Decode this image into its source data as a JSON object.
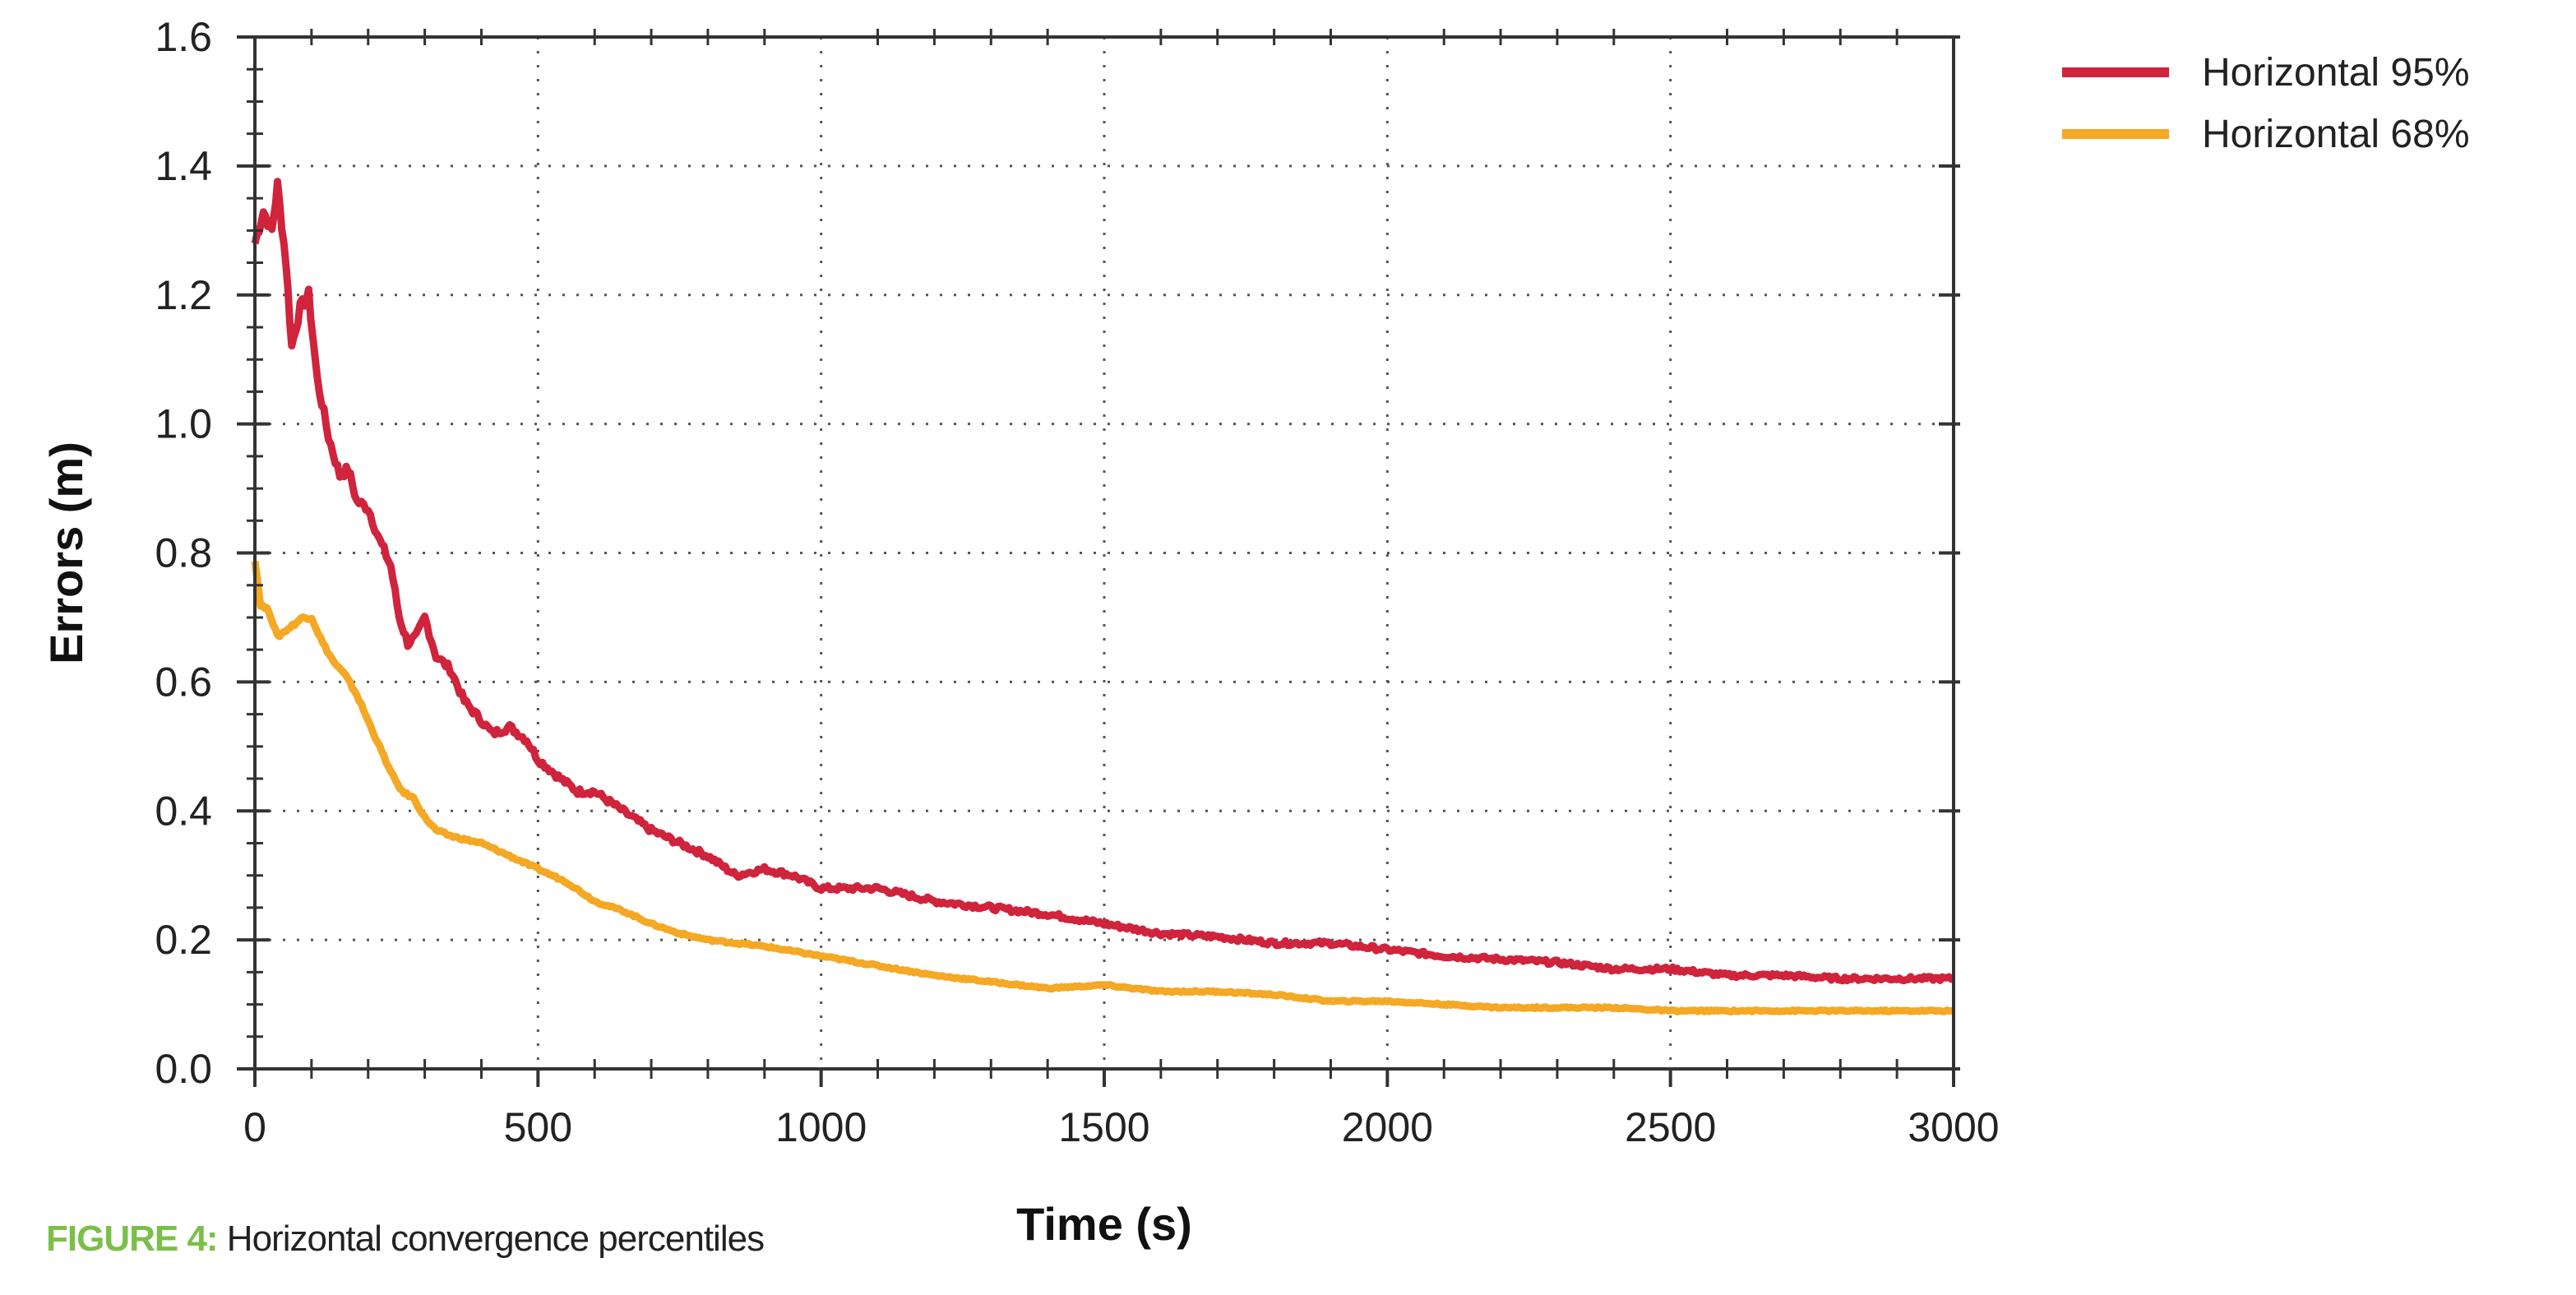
{
  "caption": {
    "figure_label": "FIGURE 4:",
    "text": " Horizontal convergence percentiles"
  },
  "chart_data": {
    "type": "line",
    "xlabel": "Time (s)",
    "ylabel": "Errors (m)",
    "xlim": [
      0,
      3000
    ],
    "ylim": [
      0.0,
      1.6
    ],
    "x_ticks": [
      0,
      500,
      1000,
      1500,
      2000,
      2500,
      3000
    ],
    "x_tick_labels": [
      "0",
      "500",
      "1000",
      "1500",
      "2000",
      "2500",
      "3000"
    ],
    "y_ticks": [
      0.0,
      0.2,
      0.4,
      0.6,
      0.8,
      1.0,
      1.2,
      1.4,
      1.6
    ],
    "y_tick_labels": [
      "0.0",
      "0.2",
      "0.4",
      "0.6",
      "0.8",
      "1.0",
      "1.2",
      "1.4",
      "1.6"
    ],
    "grid": true,
    "grid_style": "dotted",
    "legend_position": "outside-top-right",
    "series": [
      {
        "name": "Horizontal 95%",
        "color": "#d0233c",
        "points": [
          [
            0,
            1.28
          ],
          [
            15,
            1.33
          ],
          [
            30,
            1.3
          ],
          [
            40,
            1.37
          ],
          [
            55,
            1.25
          ],
          [
            65,
            1.12
          ],
          [
            80,
            1.18
          ],
          [
            95,
            1.2
          ],
          [
            110,
            1.07
          ],
          [
            130,
            0.98
          ],
          [
            150,
            0.92
          ],
          [
            165,
            0.93
          ],
          [
            180,
            0.88
          ],
          [
            200,
            0.87
          ],
          [
            220,
            0.82
          ],
          [
            240,
            0.78
          ],
          [
            255,
            0.7
          ],
          [
            270,
            0.66
          ],
          [
            285,
            0.67
          ],
          [
            300,
            0.7
          ],
          [
            320,
            0.64
          ],
          [
            345,
            0.62
          ],
          [
            370,
            0.57
          ],
          [
            400,
            0.54
          ],
          [
            420,
            0.52
          ],
          [
            450,
            0.53
          ],
          [
            480,
            0.51
          ],
          [
            500,
            0.48
          ],
          [
            540,
            0.45
          ],
          [
            570,
            0.43
          ],
          [
            600,
            0.43
          ],
          [
            650,
            0.4
          ],
          [
            700,
            0.37
          ],
          [
            750,
            0.35
          ],
          [
            800,
            0.33
          ],
          [
            850,
            0.3
          ],
          [
            900,
            0.31
          ],
          [
            950,
            0.3
          ],
          [
            1000,
            0.28
          ],
          [
            1100,
            0.28
          ],
          [
            1200,
            0.26
          ],
          [
            1300,
            0.25
          ],
          [
            1400,
            0.24
          ],
          [
            1500,
            0.225
          ],
          [
            1600,
            0.21
          ],
          [
            1700,
            0.205
          ],
          [
            1800,
            0.195
          ],
          [
            1900,
            0.195
          ],
          [
            2000,
            0.185
          ],
          [
            2100,
            0.175
          ],
          [
            2200,
            0.17
          ],
          [
            2300,
            0.165
          ],
          [
            2400,
            0.155
          ],
          [
            2500,
            0.155
          ],
          [
            2600,
            0.145
          ],
          [
            2700,
            0.145
          ],
          [
            2800,
            0.14
          ],
          [
            2900,
            0.14
          ],
          [
            3000,
            0.14
          ]
        ]
      },
      {
        "name": "Horizontal 68%",
        "color": "#f4a824",
        "points": [
          [
            0,
            0.79
          ],
          [
            10,
            0.72
          ],
          [
            25,
            0.71
          ],
          [
            40,
            0.67
          ],
          [
            55,
            0.68
          ],
          [
            70,
            0.69
          ],
          [
            85,
            0.7
          ],
          [
            100,
            0.7
          ],
          [
            120,
            0.66
          ],
          [
            140,
            0.63
          ],
          [
            160,
            0.61
          ],
          [
            180,
            0.58
          ],
          [
            200,
            0.54
          ],
          [
            220,
            0.5
          ],
          [
            240,
            0.46
          ],
          [
            260,
            0.43
          ],
          [
            280,
            0.42
          ],
          [
            300,
            0.39
          ],
          [
            320,
            0.37
          ],
          [
            350,
            0.36
          ],
          [
            400,
            0.35
          ],
          [
            450,
            0.33
          ],
          [
            500,
            0.31
          ],
          [
            550,
            0.29
          ],
          [
            600,
            0.26
          ],
          [
            650,
            0.245
          ],
          [
            700,
            0.225
          ],
          [
            750,
            0.21
          ],
          [
            800,
            0.2
          ],
          [
            900,
            0.19
          ],
          [
            1000,
            0.175
          ],
          [
            1100,
            0.16
          ],
          [
            1200,
            0.145
          ],
          [
            1300,
            0.135
          ],
          [
            1400,
            0.125
          ],
          [
            1500,
            0.13
          ],
          [
            1600,
            0.12
          ],
          [
            1700,
            0.12
          ],
          [
            1800,
            0.115
          ],
          [
            1900,
            0.105
          ],
          [
            2000,
            0.105
          ],
          [
            2100,
            0.1
          ],
          [
            2200,
            0.095
          ],
          [
            2300,
            0.095
          ],
          [
            2400,
            0.095
          ],
          [
            2500,
            0.09
          ],
          [
            2600,
            0.09
          ],
          [
            2700,
            0.09
          ],
          [
            2800,
            0.09
          ],
          [
            2900,
            0.09
          ],
          [
            3000,
            0.09
          ]
        ]
      }
    ]
  }
}
